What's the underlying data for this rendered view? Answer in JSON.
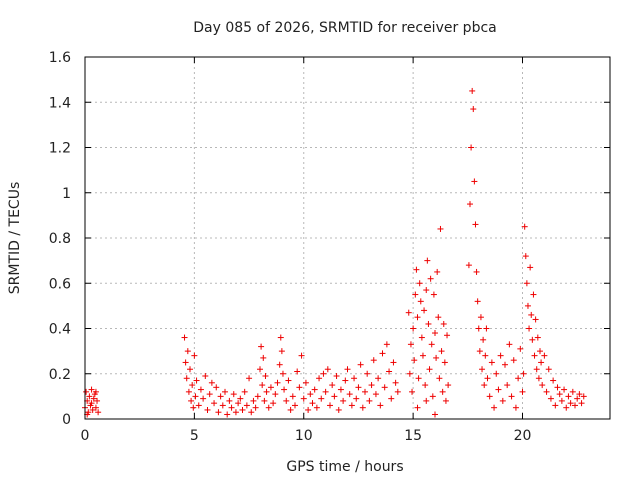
{
  "chart_data": {
    "type": "scatter",
    "title": "Day 085 of 2026, SRMTID for receiver pbca",
    "xlabel": "GPS time / hours",
    "ylabel": "SRMTID / TECUs",
    "xlim": [
      0,
      24
    ],
    "ylim": [
      0,
      1.6
    ],
    "xticks": [
      0,
      5,
      10,
      15,
      20
    ],
    "xtick_labels": [
      "0",
      "5",
      "10",
      "15",
      "20"
    ],
    "yticks": [
      0,
      0.2,
      0.4,
      0.6,
      0.8,
      1.0,
      1.2,
      1.4,
      1.6
    ],
    "ytick_labels": [
      "0",
      "0.2",
      "0.4",
      "0.6",
      "0.8",
      "1",
      "1.2",
      "1.4",
      "1.6"
    ],
    "grid": true,
    "marker": "plus",
    "marker_color": "#ee0000",
    "series": [
      {
        "name": "SRMTID",
        "points": [
          [
            0.0,
            0.05
          ],
          [
            0.05,
            0.12
          ],
          [
            0.1,
            0.08
          ],
          [
            0.15,
            0.03
          ],
          [
            0.2,
            0.1
          ],
          [
            0.25,
            0.06
          ],
          [
            0.3,
            0.13
          ],
          [
            0.35,
            0.04
          ],
          [
            0.4,
            0.09
          ],
          [
            0.45,
            0.11
          ],
          [
            0.5,
            0.05
          ],
          [
            0.55,
            0.08
          ],
          [
            0.6,
            0.03
          ],
          [
            0.1,
            0.02
          ],
          [
            0.3,
            0.07
          ],
          [
            0.5,
            0.12
          ],
          [
            4.55,
            0.36
          ],
          [
            4.6,
            0.25
          ],
          [
            4.65,
            0.18
          ],
          [
            4.7,
            0.3
          ],
          [
            4.75,
            0.12
          ],
          [
            4.8,
            0.22
          ],
          [
            4.85,
            0.08
          ],
          [
            4.9,
            0.15
          ],
          [
            4.95,
            0.05
          ],
          [
            5.0,
            0.28
          ],
          [
            5.05,
            0.1
          ],
          [
            5.1,
            0.17
          ],
          [
            5.2,
            0.06
          ],
          [
            5.3,
            0.13
          ],
          [
            5.4,
            0.09
          ],
          [
            5.5,
            0.19
          ],
          [
            5.6,
            0.04
          ],
          [
            5.7,
            0.11
          ],
          [
            5.8,
            0.16
          ],
          [
            5.9,
            0.07
          ],
          [
            6.0,
            0.14
          ],
          [
            6.1,
            0.03
          ],
          [
            6.2,
            0.1
          ],
          [
            6.3,
            0.06
          ],
          [
            6.4,
            0.12
          ],
          [
            6.5,
            0.02
          ],
          [
            6.6,
            0.08
          ],
          [
            6.7,
            0.05
          ],
          [
            6.8,
            0.11
          ],
          [
            6.9,
            0.03
          ],
          [
            7.0,
            0.07
          ],
          [
            7.1,
            0.09
          ],
          [
            7.2,
            0.04
          ],
          [
            7.3,
            0.12
          ],
          [
            7.4,
            0.06
          ],
          [
            7.5,
            0.18
          ],
          [
            7.6,
            0.03
          ],
          [
            7.7,
            0.08
          ],
          [
            7.8,
            0.05
          ],
          [
            7.9,
            0.1
          ],
          [
            8.0,
            0.22
          ],
          [
            8.05,
            0.32
          ],
          [
            8.1,
            0.15
          ],
          [
            8.15,
            0.27
          ],
          [
            8.2,
            0.08
          ],
          [
            8.25,
            0.19
          ],
          [
            8.3,
            0.12
          ],
          [
            8.4,
            0.05
          ],
          [
            8.5,
            0.14
          ],
          [
            8.6,
            0.07
          ],
          [
            8.7,
            0.11
          ],
          [
            8.8,
            0.16
          ],
          [
            8.9,
            0.24
          ],
          [
            8.95,
            0.36
          ],
          [
            9.0,
            0.3
          ],
          [
            9.05,
            0.2
          ],
          [
            9.1,
            0.13
          ],
          [
            9.2,
            0.08
          ],
          [
            9.3,
            0.17
          ],
          [
            9.4,
            0.04
          ],
          [
            9.5,
            0.1
          ],
          [
            9.6,
            0.06
          ],
          [
            9.7,
            0.21
          ],
          [
            9.8,
            0.14
          ],
          [
            9.9,
            0.28
          ],
          [
            10.0,
            0.09
          ],
          [
            10.1,
            0.16
          ],
          [
            10.2,
            0.04
          ],
          [
            10.3,
            0.11
          ],
          [
            10.4,
            0.07
          ],
          [
            10.5,
            0.13
          ],
          [
            10.6,
            0.05
          ],
          [
            10.7,
            0.18
          ],
          [
            10.8,
            0.09
          ],
          [
            10.9,
            0.2
          ],
          [
            11.0,
            0.12
          ],
          [
            11.1,
            0.22
          ],
          [
            11.2,
            0.06
          ],
          [
            11.3,
            0.15
          ],
          [
            11.4,
            0.1
          ],
          [
            11.5,
            0.19
          ],
          [
            11.6,
            0.04
          ],
          [
            11.7,
            0.13
          ],
          [
            11.8,
            0.08
          ],
          [
            11.9,
            0.17
          ],
          [
            12.0,
            0.22
          ],
          [
            12.1,
            0.11
          ],
          [
            12.2,
            0.06
          ],
          [
            12.3,
            0.18
          ],
          [
            12.4,
            0.09
          ],
          [
            12.5,
            0.14
          ],
          [
            12.6,
            0.24
          ],
          [
            12.7,
            0.05
          ],
          [
            12.8,
            0.12
          ],
          [
            12.9,
            0.2
          ],
          [
            13.0,
            0.08
          ],
          [
            13.1,
            0.15
          ],
          [
            13.2,
            0.26
          ],
          [
            13.3,
            0.11
          ],
          [
            13.4,
            0.18
          ],
          [
            13.5,
            0.06
          ],
          [
            13.6,
            0.29
          ],
          [
            13.7,
            0.14
          ],
          [
            13.8,
            0.33
          ],
          [
            13.9,
            0.21
          ],
          [
            14.0,
            0.09
          ],
          [
            14.1,
            0.25
          ],
          [
            14.2,
            0.16
          ],
          [
            14.3,
            0.12
          ],
          [
            14.8,
            0.47
          ],
          [
            14.85,
            0.2
          ],
          [
            14.9,
            0.33
          ],
          [
            14.95,
            0.12
          ],
          [
            15.0,
            0.4
          ],
          [
            15.05,
            0.26
          ],
          [
            15.1,
            0.55
          ],
          [
            15.15,
            0.66
          ],
          [
            15.2,
            0.45
          ],
          [
            15.25,
            0.18
          ],
          [
            15.3,
            0.6
          ],
          [
            15.35,
            0.52
          ],
          [
            15.4,
            0.36
          ],
          [
            15.45,
            0.28
          ],
          [
            15.5,
            0.48
          ],
          [
            15.55,
            0.15
          ],
          [
            15.6,
            0.57
          ],
          [
            15.65,
            0.7
          ],
          [
            15.7,
            0.42
          ],
          [
            15.75,
            0.22
          ],
          [
            15.8,
            0.62
          ],
          [
            15.85,
            0.33
          ],
          [
            15.9,
            0.1
          ],
          [
            15.95,
            0.55
          ],
          [
            16.0,
            0.38
          ],
          [
            16.05,
            0.27
          ],
          [
            16.1,
            0.65
          ],
          [
            16.15,
            0.45
          ],
          [
            16.2,
            0.18
          ],
          [
            16.25,
            0.84
          ],
          [
            16.3,
            0.3
          ],
          [
            16.35,
            0.12
          ],
          [
            16.4,
            0.42
          ],
          [
            16.45,
            0.25
          ],
          [
            16.5,
            0.08
          ],
          [
            16.55,
            0.37
          ],
          [
            16.6,
            0.15
          ],
          [
            15.2,
            0.05
          ],
          [
            15.6,
            0.08
          ],
          [
            16.0,
            0.02
          ],
          [
            17.55,
            0.68
          ],
          [
            17.6,
            0.95
          ],
          [
            17.65,
            1.2
          ],
          [
            17.7,
            1.45
          ],
          [
            17.75,
            1.37
          ],
          [
            17.8,
            1.05
          ],
          [
            17.85,
            0.86
          ],
          [
            17.9,
            0.65
          ],
          [
            17.95,
            0.52
          ],
          [
            18.0,
            0.4
          ],
          [
            18.05,
            0.3
          ],
          [
            18.1,
            0.45
          ],
          [
            18.15,
            0.22
          ],
          [
            18.2,
            0.35
          ],
          [
            18.25,
            0.15
          ],
          [
            18.3,
            0.28
          ],
          [
            18.35,
            0.4
          ],
          [
            18.4,
            0.18
          ],
          [
            18.5,
            0.1
          ],
          [
            18.6,
            0.25
          ],
          [
            18.7,
            0.05
          ],
          [
            18.8,
            0.2
          ],
          [
            18.9,
            0.13
          ],
          [
            19.0,
            0.28
          ],
          [
            19.1,
            0.08
          ],
          [
            19.2,
            0.24
          ],
          [
            19.3,
            0.15
          ],
          [
            19.4,
            0.33
          ],
          [
            19.5,
            0.1
          ],
          [
            19.6,
            0.26
          ],
          [
            19.7,
            0.05
          ],
          [
            19.8,
            0.18
          ],
          [
            19.9,
            0.31
          ],
          [
            20.0,
            0.12
          ],
          [
            20.05,
            0.2
          ],
          [
            20.1,
            0.85
          ],
          [
            20.15,
            0.72
          ],
          [
            20.2,
            0.6
          ],
          [
            20.25,
            0.5
          ],
          [
            20.3,
            0.4
          ],
          [
            20.35,
            0.67
          ],
          [
            20.4,
            0.46
          ],
          [
            20.45,
            0.35
          ],
          [
            20.5,
            0.55
          ],
          [
            20.55,
            0.28
          ],
          [
            20.6,
            0.44
          ],
          [
            20.65,
            0.22
          ],
          [
            20.7,
            0.36
          ],
          [
            20.75,
            0.18
          ],
          [
            20.8,
            0.3
          ],
          [
            20.85,
            0.25
          ],
          [
            20.9,
            0.15
          ],
          [
            21.0,
            0.28
          ],
          [
            21.1,
            0.12
          ],
          [
            21.2,
            0.22
          ],
          [
            21.3,
            0.09
          ],
          [
            21.4,
            0.17
          ],
          [
            21.5,
            0.06
          ],
          [
            21.6,
            0.14
          ],
          [
            21.7,
            0.11
          ],
          [
            21.8,
            0.08
          ],
          [
            21.9,
            0.13
          ],
          [
            22.0,
            0.05
          ],
          [
            22.1,
            0.1
          ],
          [
            22.2,
            0.07
          ],
          [
            22.3,
            0.12
          ],
          [
            22.4,
            0.06
          ],
          [
            22.5,
            0.09
          ],
          [
            22.6,
            0.11
          ],
          [
            22.7,
            0.07
          ],
          [
            22.8,
            0.1
          ]
        ]
      }
    ]
  }
}
